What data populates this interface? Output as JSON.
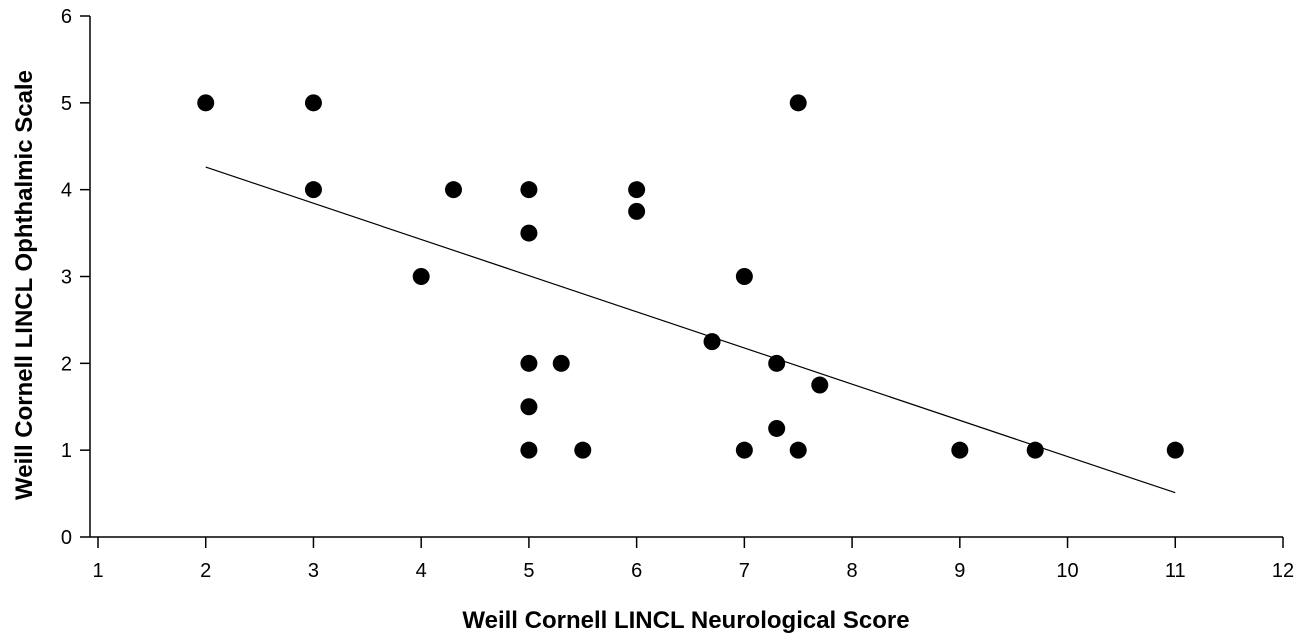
{
  "chart_data": {
    "type": "scatter",
    "title": "",
    "xlabel": "Weill Cornell LINCL Neurological Score",
    "ylabel": "Weill Cornell LINCL Ophthalmic Scale",
    "xlim": [
      1,
      12
    ],
    "ylim": [
      0,
      6
    ],
    "x_ticks": [
      "1",
      "2",
      "3",
      "4",
      "5",
      "6",
      "7",
      "8",
      "9",
      "10",
      "11",
      "12"
    ],
    "y_ticks": [
      "0",
      "1",
      "2",
      "3",
      "4",
      "5",
      "6"
    ],
    "grid": false,
    "legend": "none",
    "points": [
      {
        "x": 2,
        "y": 5
      },
      {
        "x": 3,
        "y": 5
      },
      {
        "x": 3,
        "y": 4
      },
      {
        "x": 4,
        "y": 3
      },
      {
        "x": 4.3,
        "y": 4
      },
      {
        "x": 5,
        "y": 4
      },
      {
        "x": 5,
        "y": 3.5
      },
      {
        "x": 5,
        "y": 2
      },
      {
        "x": 5,
        "y": 1.5
      },
      {
        "x": 5,
        "y": 1
      },
      {
        "x": 5.3,
        "y": 2
      },
      {
        "x": 5.5,
        "y": 1
      },
      {
        "x": 6,
        "y": 4
      },
      {
        "x": 6,
        "y": 3.75
      },
      {
        "x": 6.7,
        "y": 2.25
      },
      {
        "x": 7,
        "y": 3
      },
      {
        "x": 7,
        "y": 1
      },
      {
        "x": 7.3,
        "y": 2
      },
      {
        "x": 7.3,
        "y": 1.25
      },
      {
        "x": 7.5,
        "y": 5
      },
      {
        "x": 7.5,
        "y": 1
      },
      {
        "x": 7.7,
        "y": 1.75
      },
      {
        "x": 9,
        "y": 1
      },
      {
        "x": 9.7,
        "y": 1
      },
      {
        "x": 11,
        "y": 1
      }
    ],
    "trendline": {
      "x": [
        2,
        11
      ],
      "y": [
        4.26,
        0.51
      ]
    }
  }
}
